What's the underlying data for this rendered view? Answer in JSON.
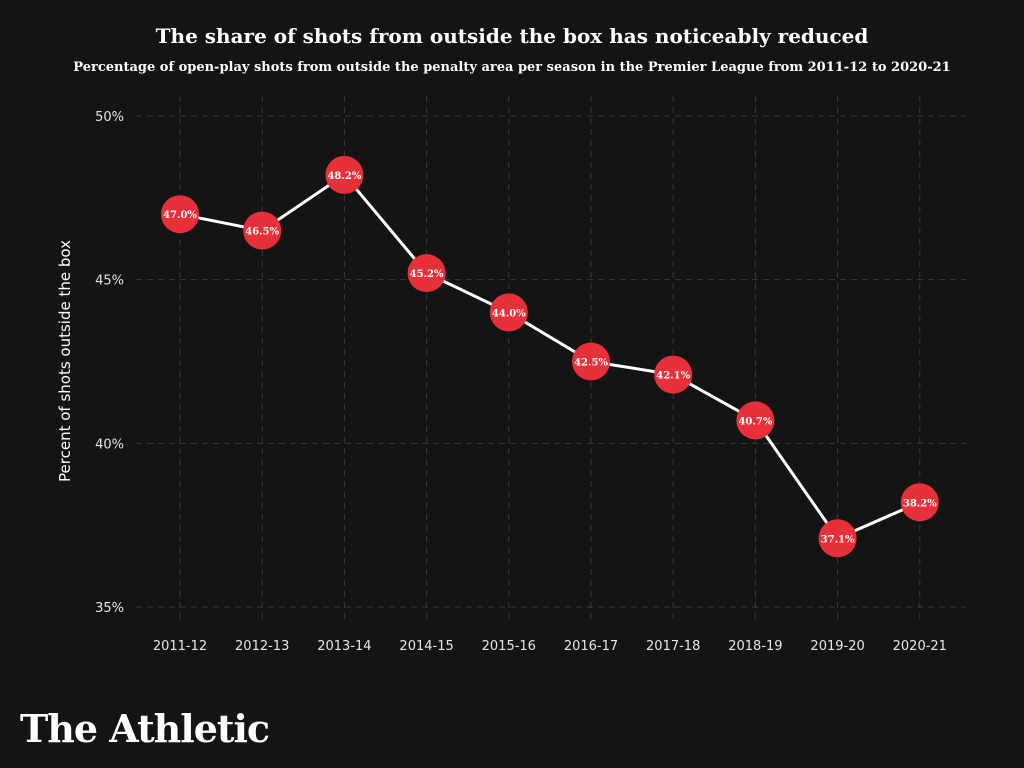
{
  "brand": "The Athletic",
  "colors": {
    "background": "#141414",
    "marker": "#e8303a",
    "line": "#ffffff",
    "grid": "#3a3a3a",
    "text": "#ffffff"
  },
  "chart_data": {
    "type": "line",
    "title": "The share of shots from outside the box has noticeably reduced",
    "subtitle": "Percentage of open-play shots from outside the penalty area per season in the Premier League from 2011-12 to 2020-21",
    "xlabel": "",
    "ylabel": "Percent of shots outside the box",
    "ylim": [
      35,
      50
    ],
    "yticks": [
      35,
      40,
      45,
      50
    ],
    "ytick_labels": [
      "35%",
      "40%",
      "45%",
      "50%"
    ],
    "grid": true,
    "categories": [
      "2011-12",
      "2012-13",
      "2013-14",
      "2014-15",
      "2015-16",
      "2016-17",
      "2017-18",
      "2018-19",
      "2019-20",
      "2020-21"
    ],
    "values": [
      47.0,
      46.5,
      48.2,
      45.2,
      44.0,
      42.5,
      42.1,
      40.7,
      37.1,
      38.2
    ],
    "data_labels": [
      "47.0%",
      "46.5%",
      "48.2%",
      "45.2%",
      "44.0%",
      "42.5%",
      "42.1%",
      "40.7%",
      "37.1%",
      "38.2%"
    ]
  }
}
